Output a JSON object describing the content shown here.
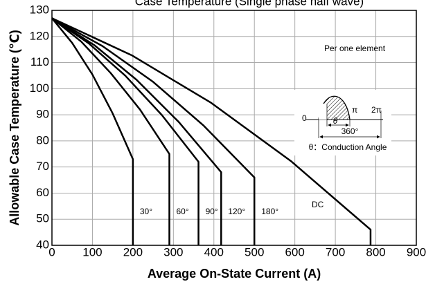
{
  "chart_data": {
    "type": "line",
    "title": "Case Temperature (Single phase half wave)",
    "x_label": "Average On-State Current (A)",
    "y_label": "Allowable Case Temperature (℃)",
    "xlim": [
      0,
      900
    ],
    "ylim": [
      40,
      130
    ],
    "xticks": [
      0,
      100,
      200,
      300,
      400,
      500,
      600,
      700,
      800,
      900
    ],
    "yticks": [
      40,
      50,
      60,
      70,
      80,
      90,
      100,
      110,
      120,
      130
    ],
    "grid": true,
    "series": [
      {
        "name": "30°",
        "color": "#000000",
        "x": [
          0,
          50,
          100,
          150,
          200,
          200
        ],
        "values": [
          127,
          117.5,
          105.4,
          90.5,
          73,
          40
        ]
      },
      {
        "name": "60°",
        "color": "#000000",
        "x": [
          0,
          72.5,
          145,
          217.5,
          290,
          290
        ],
        "values": [
          127,
          118,
          106,
          92,
          75,
          40
        ]
      },
      {
        "name": "90°",
        "color": "#000000",
        "x": [
          0,
          90.5,
          181,
          271.5,
          362,
          362
        ],
        "values": [
          127,
          117.4,
          105,
          89.9,
          72,
          40
        ]
      },
      {
        "name": "120°",
        "color": "#000000",
        "x": [
          0,
          104.5,
          209,
          313.5,
          418,
          418
        ],
        "values": [
          127,
          116.7,
          103.4,
          87.2,
          68,
          40
        ]
      },
      {
        "name": "180°",
        "color": "#000000",
        "x": [
          0,
          125,
          250,
          375,
          500,
          500
        ],
        "values": [
          127,
          116.3,
          102.6,
          85.8,
          66,
          40
        ]
      },
      {
        "name": "DC",
        "color": "#000000",
        "x": [
          0,
          197,
          393,
          590,
          787,
          787
        ],
        "values": [
          127,
          112.8,
          94.6,
          72.3,
          46,
          40
        ]
      }
    ],
    "annotations": {
      "note": "Per one element",
      "zero": "0",
      "pi": "π",
      "two_pi": "2π",
      "theta": "θ",
      "period": "360°",
      "legend": "θ：Conduction Angle"
    }
  }
}
